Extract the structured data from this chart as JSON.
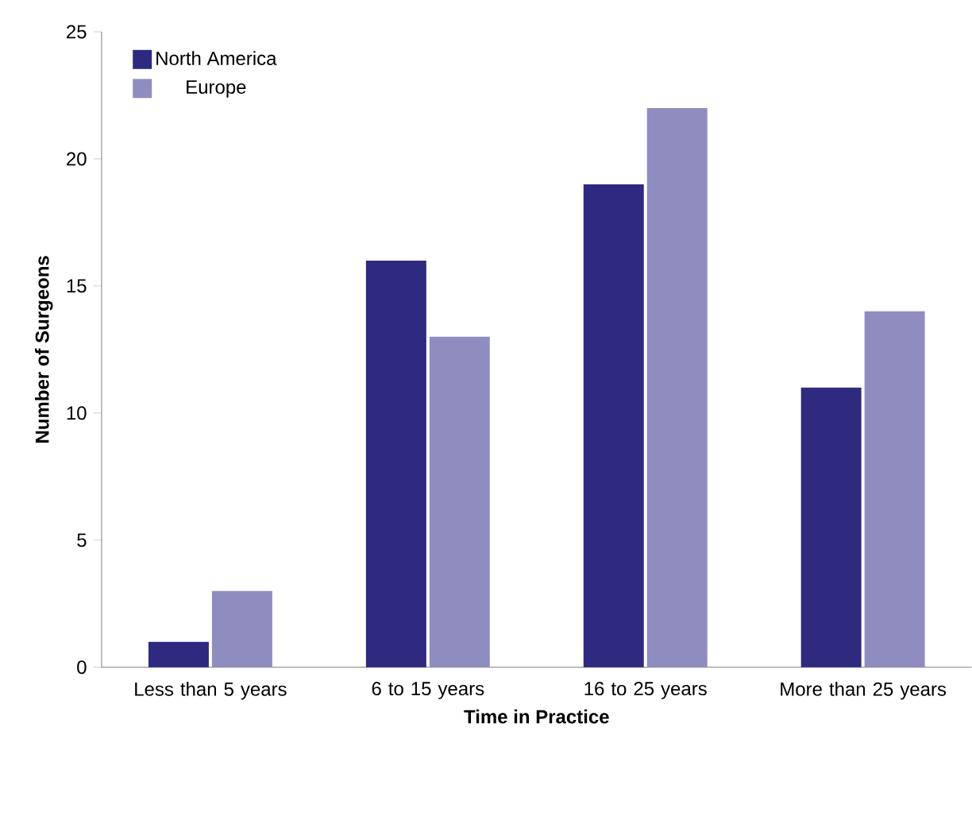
{
  "chart_data": {
    "type": "bar",
    "xlabel": "Time in Practice",
    "ylabel": "Number of Surgeons",
    "categories": [
      "Less than 5 years",
      "6 to 15 years",
      "16 to 25 years",
      "More than 25 years"
    ],
    "series": [
      {
        "name": "North America",
        "color": "#2e2a7f",
        "values": [
          1,
          16,
          19,
          11
        ]
      },
      {
        "name": "Europe",
        "color": "#8f8cbf",
        "values": [
          3,
          13,
          22,
          14
        ]
      }
    ],
    "ylim": [
      0,
      25
    ],
    "yticks": [
      0,
      5,
      10,
      15,
      20,
      25
    ],
    "legend": "top left"
  }
}
